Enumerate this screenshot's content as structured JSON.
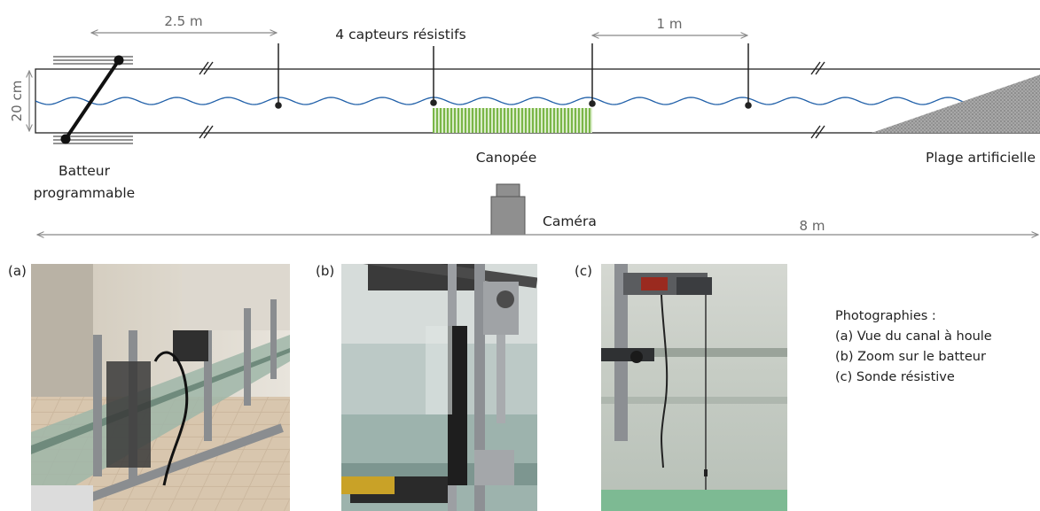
{
  "diagram": {
    "dim_batteur_to_probe": "2.5 m",
    "probes_label": "4 capteurs résistifs",
    "dim_probe_spacing": "1 m",
    "channel_height": "20 cm",
    "batteur_label_line1": "Batteur",
    "batteur_label_line2": "programmable",
    "canopy_label": "Canopée",
    "beach_label": "Plage artificielle",
    "camera_label": "Caméra",
    "total_length": "8 m",
    "colors": {
      "wave": "#1f5fa8",
      "canopy": "#7ab648",
      "beach": "#8c8c8c",
      "camera": "#8f8f8f",
      "frame": "#222222"
    }
  },
  "photos": {
    "a_tag": "(a)",
    "b_tag": "(b)",
    "c_tag": "(c)"
  },
  "caption": {
    "title": "Photographies :",
    "lines": [
      "(a) Vue du canal à houle",
      "(b) Zoom sur le batteur",
      "(c) Sonde résistive"
    ]
  }
}
